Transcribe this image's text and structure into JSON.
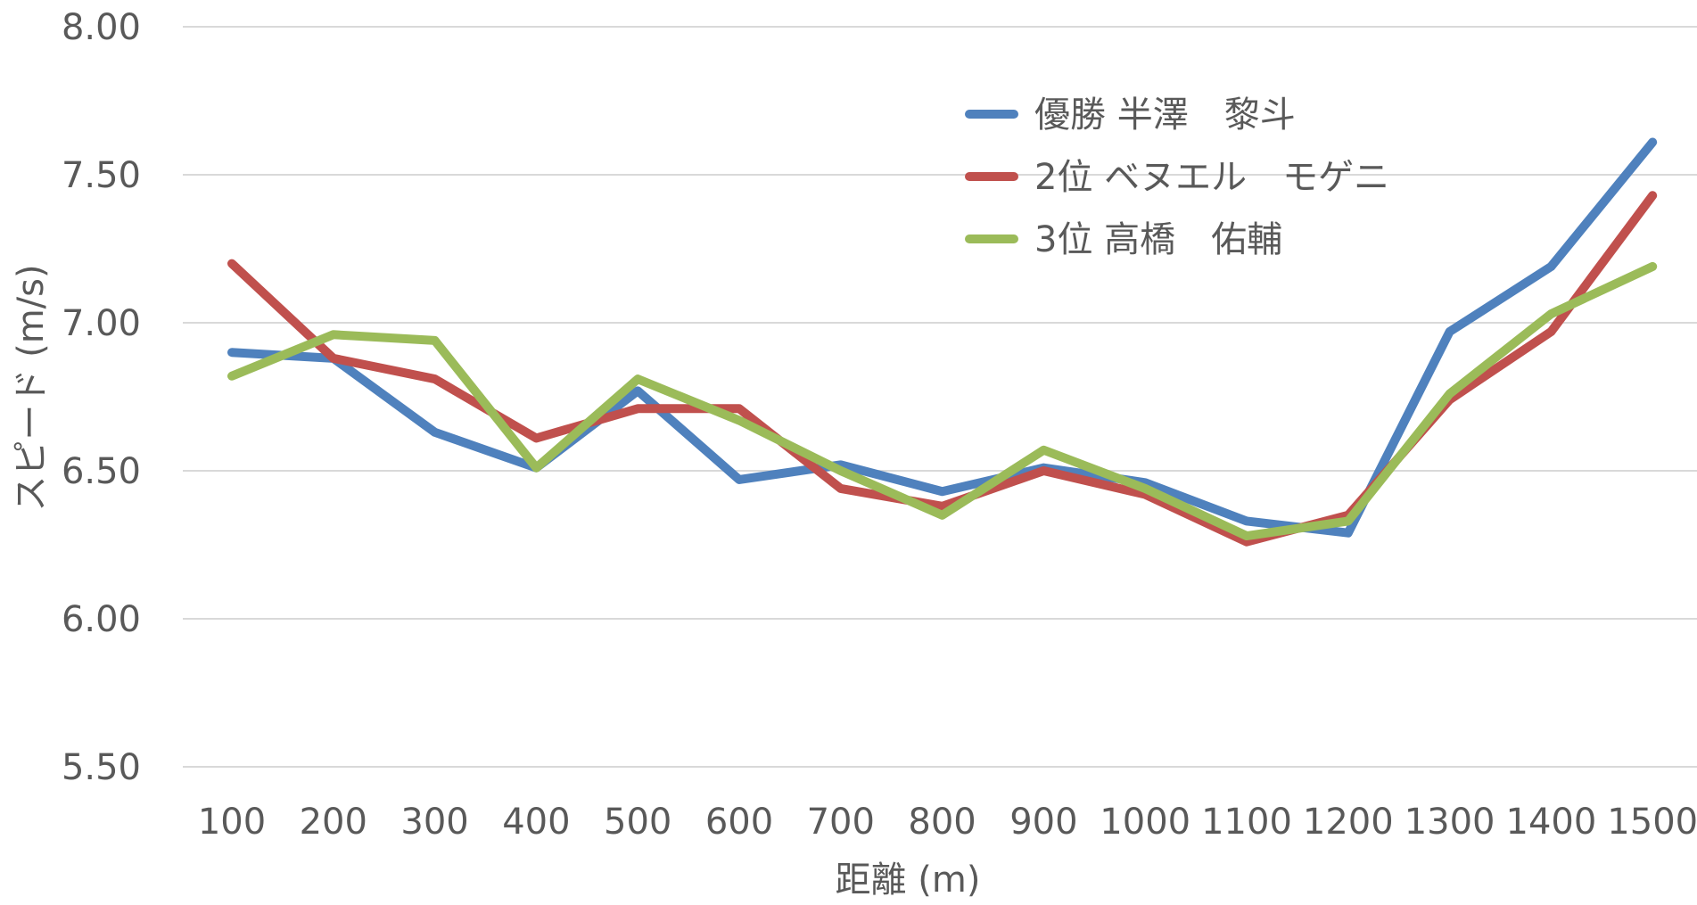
{
  "chart_data": {
    "type": "line",
    "title": "",
    "xlabel": "距離 (m)",
    "ylabel": "スピード (m/s)",
    "ylim": [
      5.5,
      8.0
    ],
    "yticks": [
      "5.50",
      "6.00",
      "6.50",
      "7.00",
      "7.50",
      "8.00"
    ],
    "categories": [
      "100",
      "200",
      "300",
      "400",
      "500",
      "600",
      "700",
      "800",
      "900",
      "1000",
      "1100",
      "1200",
      "1300",
      "1400",
      "1500"
    ],
    "grid": true,
    "legend_position": "top-right",
    "series": [
      {
        "name": "優勝 半澤　黎斗",
        "color": "#4f81bd",
        "values": [
          6.9,
          6.88,
          6.63,
          6.51,
          6.77,
          6.47,
          6.52,
          6.43,
          6.51,
          6.46,
          6.33,
          6.29,
          6.97,
          7.19,
          7.61
        ]
      },
      {
        "name": "2位 ベヌエル　モゲニ",
        "color": "#c0504d",
        "values": [
          7.2,
          6.88,
          6.81,
          6.61,
          6.71,
          6.71,
          6.44,
          6.38,
          6.5,
          6.42,
          6.26,
          6.35,
          6.74,
          6.97,
          7.43
        ]
      },
      {
        "name": "3位 高橋　佑輔",
        "color": "#9bbb59",
        "values": [
          6.82,
          6.96,
          6.94,
          6.51,
          6.81,
          6.67,
          6.5,
          6.35,
          6.57,
          6.44,
          6.28,
          6.33,
          6.76,
          7.03,
          7.19
        ]
      }
    ]
  }
}
